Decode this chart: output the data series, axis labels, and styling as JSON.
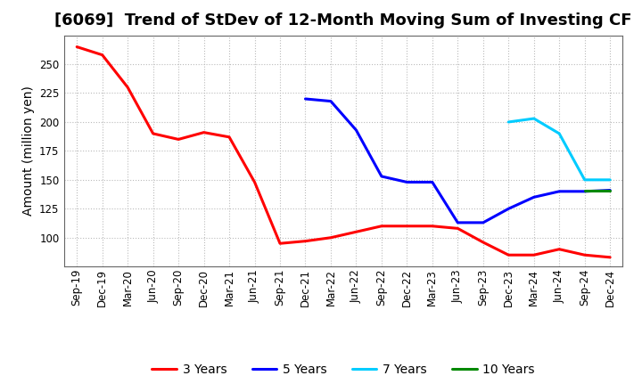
{
  "title": "[6069]  Trend of StDev of 12-Month Moving Sum of Investing CF",
  "ylabel": "Amount (million yen)",
  "background_color": "#ffffff",
  "grid_color": "#aaaaaa",
  "series": {
    "3 Years": {
      "color": "#ff0000",
      "x": [
        "Sep-19",
        "Dec-19",
        "Mar-20",
        "Jun-20",
        "Sep-20",
        "Dec-20",
        "Mar-21",
        "Jun-21",
        "Sep-21",
        "Dec-21",
        "Mar-22",
        "Jun-22",
        "Sep-22",
        "Dec-22",
        "Mar-23",
        "Jun-23",
        "Sep-23",
        "Dec-23",
        "Mar-24",
        "Jun-24",
        "Sep-24",
        "Dec-24"
      ],
      "y": [
        265,
        258,
        230,
        190,
        185,
        191,
        187,
        148,
        95,
        97,
        100,
        105,
        110,
        110,
        110,
        108,
        96,
        85,
        85,
        90,
        85,
        83
      ]
    },
    "5 Years": {
      "color": "#0000ff",
      "x": [
        "Dec-21",
        "Mar-22",
        "Jun-22",
        "Sep-22",
        "Dec-22",
        "Mar-23",
        "Jun-23",
        "Sep-23",
        "Dec-23",
        "Mar-24",
        "Jun-24",
        "Sep-24",
        "Dec-24"
      ],
      "y": [
        220,
        218,
        193,
        153,
        148,
        148,
        113,
        113,
        125,
        135,
        140,
        140,
        141
      ]
    },
    "7 Years": {
      "color": "#00ccff",
      "x": [
        "Dec-23",
        "Mar-24",
        "Jun-24",
        "Sep-24",
        "Dec-24"
      ],
      "y": [
        200,
        203,
        190,
        150,
        150
      ]
    },
    "10 Years": {
      "color": "#008800",
      "x": [
        "Sep-24",
        "Dec-24"
      ],
      "y": [
        141,
        141
      ]
    }
  },
  "xticks": [
    "Sep-19",
    "Dec-19",
    "Mar-20",
    "Jun-20",
    "Sep-20",
    "Dec-20",
    "Mar-21",
    "Jun-21",
    "Sep-21",
    "Dec-21",
    "Mar-22",
    "Jun-22",
    "Sep-22",
    "Dec-22",
    "Mar-23",
    "Jun-23",
    "Sep-23",
    "Dec-23",
    "Mar-24",
    "Jun-24",
    "Sep-24",
    "Dec-24"
  ],
  "ylim": [
    75,
    275
  ],
  "yticks": [
    100,
    125,
    150,
    175,
    200,
    225,
    250
  ],
  "linewidth": 2.2,
  "title_fontsize": 13,
  "tick_fontsize": 8.5,
  "ylabel_fontsize": 10,
  "legend_fontsize": 10
}
